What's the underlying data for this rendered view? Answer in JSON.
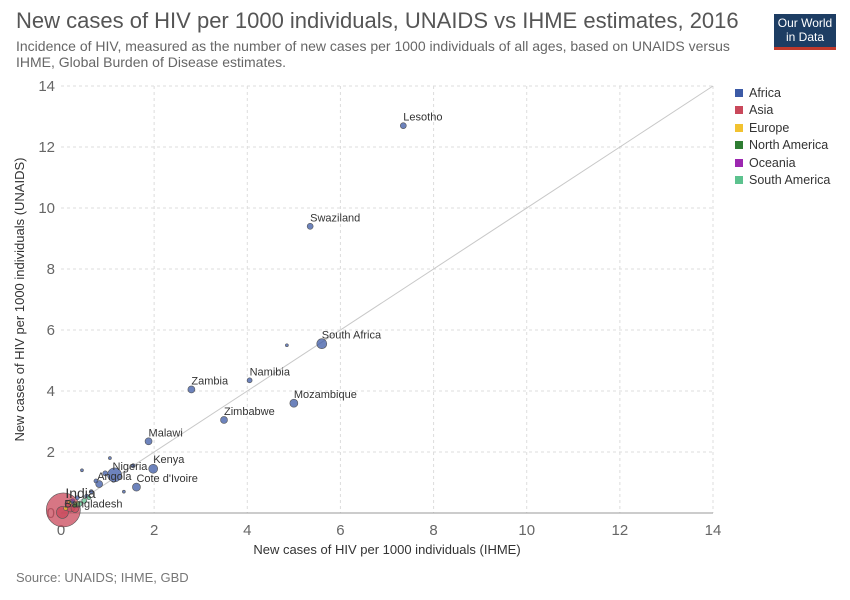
{
  "header": {
    "title": "New cases of HIV per 1000 individuals, UNAIDS vs IHME estimates, 2016",
    "subtitle": "Incidence of HIV, measured as the number of new cases per 1000 individuals of all ages, based on UNAIDS versus IHME, Global Burden of Disease estimates.",
    "logo_line1": "Our World",
    "logo_line2": "in Data"
  },
  "footer": {
    "source": "Source: UNAIDS; IHME, GBD"
  },
  "colors": {
    "Africa": "#3c5aa6",
    "Asia": "#c9485b",
    "Europe": "#f2c230",
    "North America": "#2e7d32",
    "Oceania": "#9c27b0",
    "South America": "#5cc28e"
  },
  "chart_data": {
    "type": "scatter",
    "xlabel": "New cases of HIV per 1000 individuals (IHME)",
    "ylabel": "New cases of HIV per 1000 individuals (UNAIDS)",
    "xlim": [
      0,
      14
    ],
    "ylim": [
      0,
      14
    ],
    "xticks": [
      0,
      2,
      4,
      6,
      8,
      10,
      12,
      14
    ],
    "yticks": [
      0,
      2,
      4,
      6,
      8,
      10,
      12,
      14
    ],
    "grid": true,
    "reference_line": "y = x",
    "legend": {
      "placement": "right",
      "entries": [
        "Africa",
        "Asia",
        "Europe",
        "North America",
        "Oceania",
        "South America"
      ]
    },
    "points": [
      {
        "label": "Lesotho",
        "x": 7.35,
        "y": 12.7,
        "region": "Africa",
        "size": 3
      },
      {
        "label": "Swaziland",
        "x": 5.35,
        "y": 9.4,
        "region": "Africa",
        "size": 3
      },
      {
        "label": "South Africa",
        "x": 5.6,
        "y": 5.55,
        "region": "Africa",
        "size": 5
      },
      {
        "label": "",
        "x": 4.85,
        "y": 5.5,
        "region": "Africa",
        "size": 1.5
      },
      {
        "label": "Namibia",
        "x": 4.05,
        "y": 4.35,
        "region": "Africa",
        "size": 2.5
      },
      {
        "label": "Zambia",
        "x": 2.8,
        "y": 4.05,
        "region": "Africa",
        "size": 3.5
      },
      {
        "label": "Mozambique",
        "x": 5.0,
        "y": 3.6,
        "region": "Africa",
        "size": 4
      },
      {
        "label": "Zimbabwe",
        "x": 3.5,
        "y": 3.05,
        "region": "Africa",
        "size": 3.5
      },
      {
        "label": "Malawi",
        "x": 1.88,
        "y": 2.35,
        "region": "Africa",
        "size": 3.5
      },
      {
        "label": "Kenya",
        "x": 1.98,
        "y": 1.45,
        "region": "Africa",
        "size": 4.5
      },
      {
        "label": "Nigeria",
        "x": 1.15,
        "y": 1.25,
        "region": "Africa",
        "size": 7
      },
      {
        "label": "Angola",
        "x": 0.82,
        "y": 0.95,
        "region": "Africa",
        "size": 3.5
      },
      {
        "label": "Cote d'Ivoire",
        "x": 1.62,
        "y": 0.85,
        "region": "Africa",
        "size": 4
      },
      {
        "label": "",
        "x": 1.05,
        "y": 1.8,
        "region": "Africa",
        "size": 1.5
      },
      {
        "label": "",
        "x": 0.45,
        "y": 1.4,
        "region": "Africa",
        "size": 1.5
      },
      {
        "label": "",
        "x": 1.55,
        "y": 1.55,
        "region": "Africa",
        "size": 2
      },
      {
        "label": "",
        "x": 0.95,
        "y": 1.3,
        "region": "Africa",
        "size": 2.5
      },
      {
        "label": "",
        "x": 1.35,
        "y": 0.7,
        "region": "Africa",
        "size": 1.5
      },
      {
        "label": "",
        "x": 0.65,
        "y": 0.7,
        "region": "Africa",
        "size": 2
      },
      {
        "label": "",
        "x": 0.55,
        "y": 0.55,
        "region": "Africa",
        "size": 2
      },
      {
        "label": "",
        "x": 0.35,
        "y": 0.5,
        "region": "Africa",
        "size": 2
      },
      {
        "label": "",
        "x": 0.25,
        "y": 0.35,
        "region": "Africa",
        "size": 1.5
      },
      {
        "label": "",
        "x": 0.75,
        "y": 1.05,
        "region": "Africa",
        "size": 2
      },
      {
        "label": "India",
        "x": 0.05,
        "y": 0.1,
        "region": "Asia",
        "size": 17
      },
      {
        "label": "Bangladesh",
        "x": 0.03,
        "y": 0.02,
        "region": "Asia",
        "size": 6
      },
      {
        "label": "",
        "x": 0.2,
        "y": 0.2,
        "region": "Asia",
        "size": 5
      },
      {
        "label": "",
        "x": 0.3,
        "y": 0.15,
        "region": "Asia",
        "size": 4
      },
      {
        "label": "",
        "x": 0.15,
        "y": 0.3,
        "region": "Asia",
        "size": 3
      },
      {
        "label": "",
        "x": 0.2,
        "y": 0.35,
        "region": "Europe",
        "size": 2.5
      },
      {
        "label": "",
        "x": 0.35,
        "y": 0.3,
        "region": "Europe",
        "size": 2.5
      },
      {
        "label": "",
        "x": 0.1,
        "y": 0.15,
        "region": "Europe",
        "size": 2
      },
      {
        "label": "",
        "x": 0.3,
        "y": 0.25,
        "region": "North America",
        "size": 2
      },
      {
        "label": "",
        "x": 0.25,
        "y": 0.4,
        "region": "Oceania",
        "size": 2
      },
      {
        "label": "",
        "x": 0.5,
        "y": 0.4,
        "region": "South America",
        "size": 2.5
      },
      {
        "label": "",
        "x": 0.4,
        "y": 0.3,
        "region": "South America",
        "size": 2.5
      },
      {
        "label": "",
        "x": 0.6,
        "y": 0.5,
        "region": "South America",
        "size": 2
      }
    ]
  }
}
